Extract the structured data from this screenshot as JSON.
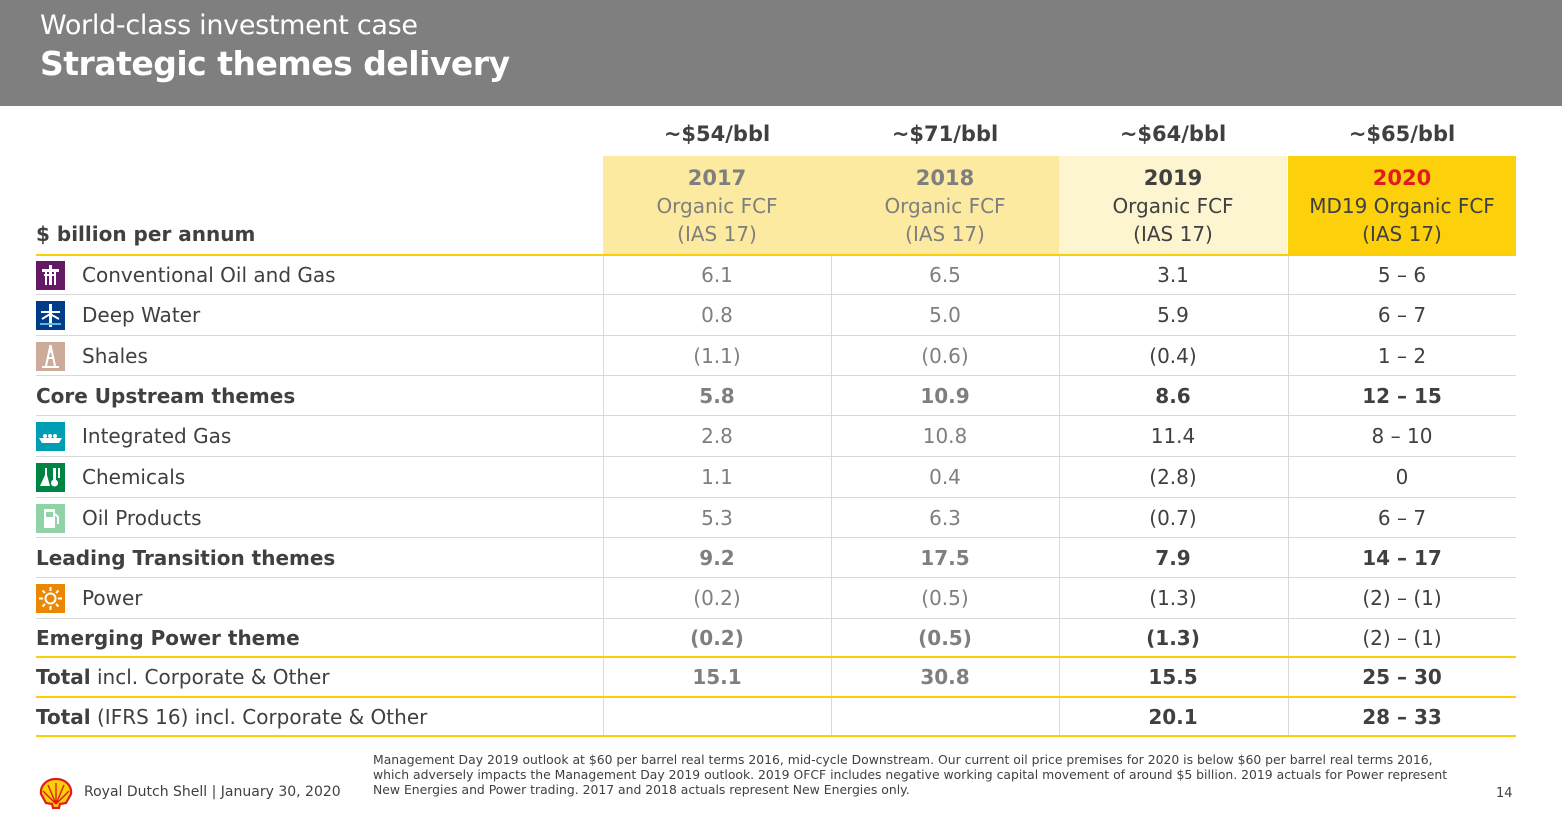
{
  "header": {
    "supertitle": "World-class investment case",
    "title": "Strategic themes delivery"
  },
  "unit_label": "$ billion per annum",
  "columns": [
    {
      "price": "~$54/bbl",
      "year": "2017",
      "line1": "Organic FCF",
      "line2": "(IAS 17)"
    },
    {
      "price": "~$71/bbl",
      "year": "2018",
      "line1": "Organic FCF",
      "line2": "(IAS 17)"
    },
    {
      "price": "~$64/bbl",
      "year": "2019",
      "line1": "Organic FCF",
      "line2": "(IAS 17)"
    },
    {
      "price": "~$65/bbl",
      "year": "2020",
      "line1": "MD19 Organic FCF",
      "line2": "(IAS 17)"
    }
  ],
  "rows": [
    {
      "label": "Conventional Oil and Gas",
      "icon": "oil-rig-icon",
      "values": [
        "6.1",
        "6.5",
        "3.1",
        "5 – 6"
      ]
    },
    {
      "label": "Deep Water",
      "icon": "deep-water-platform-icon",
      "values": [
        "0.8",
        "5.0",
        "5.9",
        "6 – 7"
      ]
    },
    {
      "label": "Shales",
      "icon": "shale-derrick-icon",
      "values": [
        "(1.1)",
        "(0.6)",
        "(0.4)",
        "1 – 2"
      ]
    },
    {
      "label": "Core Upstream themes",
      "values": [
        "5.8",
        "10.9",
        "8.6",
        "12 – 15"
      ]
    },
    {
      "label": "Integrated Gas",
      "icon": "lng-ship-icon",
      "values": [
        "2.8",
        "10.8",
        "11.4",
        "8 – 10"
      ]
    },
    {
      "label": "Chemicals",
      "icon": "chemicals-flask-icon",
      "values": [
        "1.1",
        "0.4",
        "(2.8)",
        "0"
      ]
    },
    {
      "label": "Oil Products",
      "icon": "fuel-pump-icon",
      "values": [
        "5.3",
        "6.3",
        "(0.7)",
        "6 – 7"
      ]
    },
    {
      "label": "Leading Transition themes",
      "values": [
        "9.2",
        "17.5",
        "7.9",
        "14 – 17"
      ]
    },
    {
      "label": "Power",
      "icon": "power-sun-icon",
      "values": [
        "(0.2)",
        "(0.5)",
        "(1.3)",
        "(2) – (1)"
      ]
    },
    {
      "label": "Emerging Power theme",
      "values": [
        "(0.2)",
        "(0.5)",
        "(1.3)",
        "(2) – (1)"
      ]
    },
    {
      "label_bold": "Total",
      "label_rest": " incl. Corporate & Other",
      "values": [
        "15.1",
        "30.8",
        "15.5",
        "25 – 30"
      ]
    },
    {
      "label_bold": "Total",
      "label_rest": " (IFRS 16) incl. Corporate & Other",
      "values": [
        "",
        "",
        "20.1",
        "28 – 33"
      ]
    }
  ],
  "footer": {
    "company": "Royal Dutch Shell | January 30, 2020",
    "footnote_lines": [
      "Management Day 2019 outlook at $60 per barrel real terms 2016, mid-cycle Downstream. Our current oil price premises for 2020 is below $60 per barrel real terms 2016,",
      "which adversely impacts the Management Day 2019 outlook. 2019 OFCF includes negative working capital movement of around $5 billion. 2019 actuals for Power represent",
      "New Energies and Power trading. 2017 and 2018 actuals represent New Energies only."
    ],
    "page_number": "14"
  },
  "colors": {
    "header_bg": "#7f7f7f",
    "shell_yellow": "#fbce07",
    "shell_red": "#dd1d21"
  }
}
